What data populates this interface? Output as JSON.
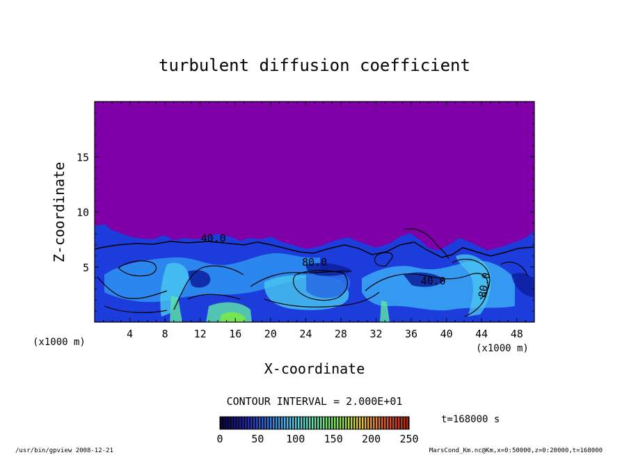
{
  "chart_data": {
    "type": "heatmap",
    "title": "turbulent diffusion coefficient",
    "xlabel": "X-coordinate",
    "ylabel": "Z-coordinate",
    "x_unit_left": "(x1000 m)",
    "x_unit_right": "(x1000 m)",
    "xlim": [
      0,
      50
    ],
    "ylim": [
      0,
      20
    ],
    "xticks": [
      4,
      8,
      12,
      16,
      20,
      24,
      28,
      32,
      36,
      40,
      44,
      48
    ],
    "yticks": [
      5,
      10,
      15
    ],
    "contour_interval": "CONTOUR INTERVAL = 2.000E+01",
    "contour_labels": [
      {
        "text": "40.0",
        "x": 13.5,
        "y": 7.3
      },
      {
        "text": "80.0",
        "x": 25.0,
        "y": 5.1
      },
      {
        "text": "40.0",
        "x": 38.5,
        "y": 3.4
      },
      {
        "text": "80.0",
        "x": 44.7,
        "y": 3.3
      }
    ],
    "colorbar": {
      "min": 0,
      "max": 250,
      "ticks": [
        0,
        50,
        100,
        150,
        200,
        250
      ],
      "colors": [
        "#000040",
        "#1a1aa8",
        "#2e6ee0",
        "#49c8f0",
        "#5fe6a8",
        "#7be84a",
        "#e8c840",
        "#e05a2e",
        "#c02010"
      ]
    },
    "background_level_color": "#7f00a8",
    "time_label": "t=168000  s",
    "footer_left": "/usr/bin/gpview   2008-12-21",
    "footer_right": "MarsCond_Km.nc@Km,x=0:50000,z=0:20000,t=168000"
  }
}
